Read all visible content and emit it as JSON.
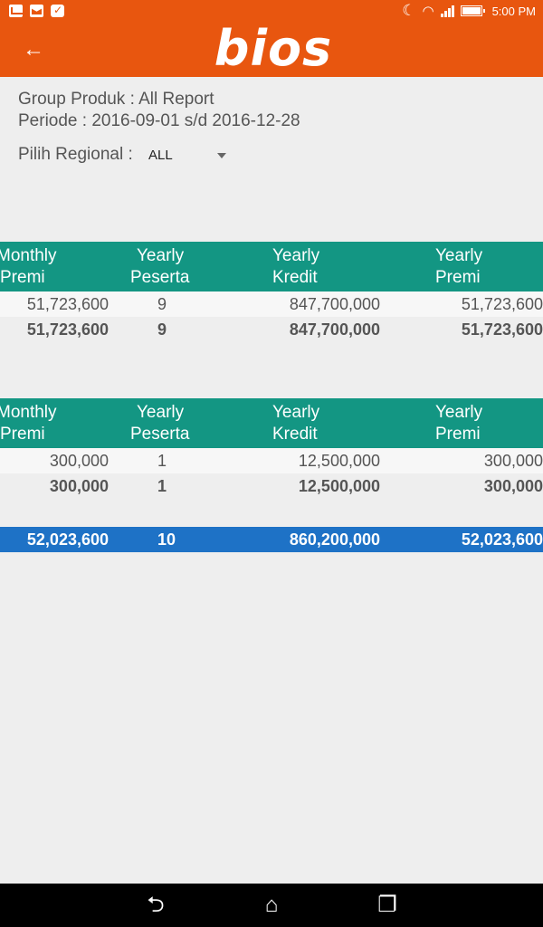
{
  "status_bar": {
    "time": "5:00 PM",
    "left_icons": [
      "mail-icon",
      "gmail-icon",
      "shopping-bag-icon"
    ],
    "right_icons": [
      "moon-icon",
      "wifi-icon",
      "signal-icon",
      "battery-icon"
    ]
  },
  "app_bar": {
    "logo_text": "bios",
    "back_icon": "arrow-left-icon",
    "color": "#e8560f"
  },
  "filters": {
    "group_produk": "Group Produk : All Report",
    "periode": "Periode : 2016-09-01 s/d 2016-12-28",
    "regional_label": "Pilih Regional :",
    "regional_value": "ALL"
  },
  "tables": [
    {
      "headers": [
        [
          "Monthly",
          "Premi"
        ],
        [
          "Yearly",
          "Peserta"
        ],
        [
          "Yearly",
          "Kredit"
        ],
        [
          "Yearly",
          "Premi"
        ]
      ],
      "row": [
        "51,723,600",
        "9",
        "847,700,000",
        "51,723,600"
      ],
      "subtotal": [
        "51,723,600",
        "9",
        "847,700,000",
        "51,723,600"
      ]
    },
    {
      "headers": [
        [
          "Monthly",
          "Premi"
        ],
        [
          "Yearly",
          "Peserta"
        ],
        [
          "Yearly",
          "Kredit"
        ],
        [
          "Yearly",
          "Premi"
        ]
      ],
      "row": [
        "300,000",
        "1",
        "12,500,000",
        "300,000"
      ],
      "subtotal": [
        "300,000",
        "1",
        "12,500,000",
        "300,000"
      ]
    }
  ],
  "grand_total": [
    "52,023,600",
    "10",
    "860,200,000",
    "52,023,600"
  ],
  "nav_bar": {
    "buttons": [
      "back-icon",
      "home-icon",
      "recent-apps-icon"
    ]
  },
  "colors": {
    "header_teal": "#139683",
    "total_blue": "#1e72c6",
    "brand_orange": "#e8560f"
  }
}
